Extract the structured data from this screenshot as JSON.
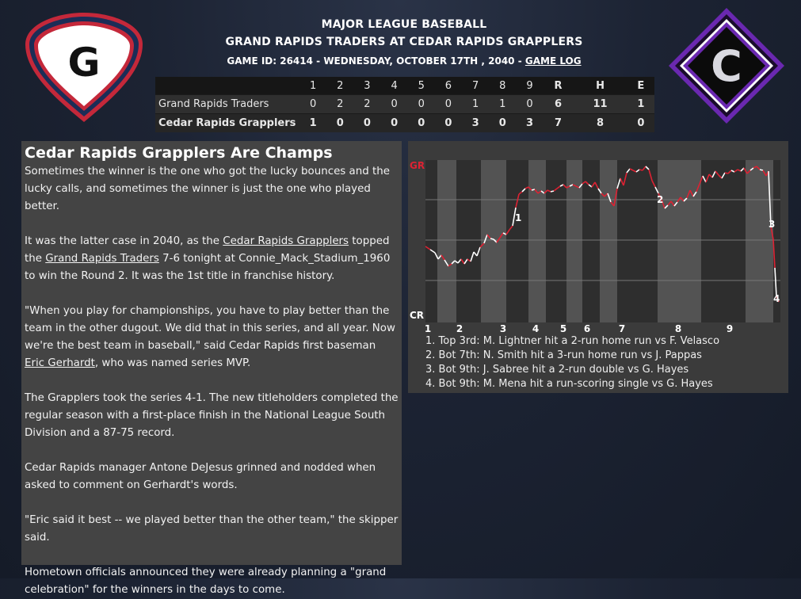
{
  "header": {
    "league": "MAJOR LEAGUE BASEBALL",
    "matchup": "GRAND RAPIDS TRADERS AT CEDAR RAPIDS GRAPPLERS",
    "game_info": "GAME ID: 26414 - WEDNESDAY, OCTOBER 17TH , 2040 - ",
    "game_log_link": "GAME LOG"
  },
  "logos": {
    "away_letter": "G",
    "home_letter": "C"
  },
  "colors": {
    "away_red": "#c4283a",
    "away_navy": "#1b2d57",
    "home_purple": "#6a28b0",
    "chart_red": "#dd2233",
    "chart_white": "#ffffff"
  },
  "linescore": {
    "headers": [
      "1",
      "2",
      "3",
      "4",
      "5",
      "6",
      "7",
      "8",
      "9",
      "R",
      "H",
      "E"
    ],
    "rows": [
      {
        "team": "Grand Rapids Traders",
        "innings": [
          "0",
          "2",
          "2",
          "0",
          "0",
          "0",
          "1",
          "1",
          "0"
        ],
        "r": "6",
        "h": "11",
        "e": "1"
      },
      {
        "team": "Cedar Rapids Grapplers",
        "innings": [
          "1",
          "0",
          "0",
          "0",
          "0",
          "0",
          "3",
          "0",
          "3"
        ],
        "r": "7",
        "h": "8",
        "e": "0"
      }
    ]
  },
  "article": {
    "headline": "Cedar Rapids Grapplers Are Champs",
    "p1": "Sometimes the winner is the one who got the lucky bounces and the lucky calls, and sometimes the winner is just the one who played better.",
    "p2a": "It was the latter case in 2040, as the ",
    "p2_link1": "Cedar Rapids Grapplers",
    "p2b": " topped the ",
    "p2_link2": "Grand Rapids Traders",
    "p2c": " 7-6 tonight at Connie_Mack_Stadium_1960 to win the Round 2. It was the 1st title in franchise history.",
    "p3a": "\"When you play for championships, you have to play better than the team in the other dugout. We did that in this series, and all year. Now we're the best team in baseball,\" said Cedar Rapids first baseman ",
    "p3_link": "Eric Gerhardt",
    "p3b": ", who was named series MVP.",
    "p4": "The Grapplers took the series 4-1. The new titleholders completed the regular season with a first-place finish in the National League South Division and a 87-75 record.",
    "p5": "Cedar Rapids manager Antone DeJesus grinned and nodded when asked to comment on Gerhardt's words.",
    "p6": "\"Eric said it best -- we played better than the other team,\" the skipper said.",
    "p7": "Hometown officials announced they were already planning a \"grand celebration\" for the winners in the days to come."
  },
  "win_prob_chart": {
    "top_label": "GR",
    "bottom_label": "CR",
    "inning_labels": [
      "1",
      "2",
      "3",
      "4",
      "5",
      "6",
      "7",
      "8",
      "9"
    ],
    "event_markers": [
      "1",
      "2",
      "3",
      "4"
    ],
    "events": [
      "1. Top 3rd: M. Lightner hit a 2-run home run vs F. Velasco",
      "2. Bot 7th: N. Smith hit a 3-run home run vs J. Pappas",
      "3. Bot 9th: J. Sabree hit a 2-run double vs G. Hayes",
      "4. Bot 9th: M. Mena hit a run-scoring single vs G. Hayes"
    ]
  }
}
